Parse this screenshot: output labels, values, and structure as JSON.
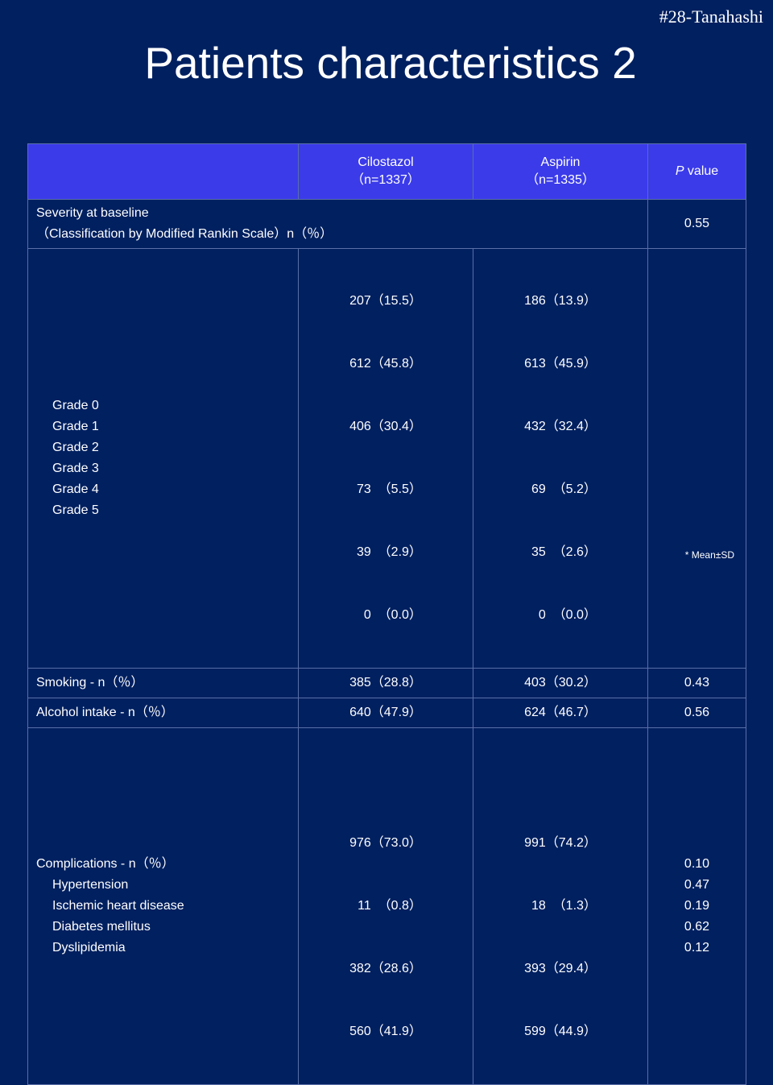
{
  "slide": {
    "tag": "#28-Tanahashi",
    "title": "Patients characteristics 2",
    "footnote": "*  Mean±SD"
  },
  "table": {
    "header": {
      "col1_name": "Cilostazol",
      "col1_n": "（n=1337）",
      "col2_name": "Aspirin",
      "col2_n": "（n=1335）",
      "p_italic": "P",
      "p_rest": " value"
    },
    "severity": {
      "label_line1": "Severity at baseline",
      "label_line2": "（Classification by Modified Rankin Scale）n（％）",
      "p": "0.55"
    },
    "grades": {
      "labels": [
        "Grade 0",
        "Grade 1",
        "Grade 2",
        "Grade 3",
        "Grade 4",
        "Grade 5"
      ],
      "cilostazol": [
        "207（15.5）",
        "612（45.8）",
        "406（30.4）",
        "73  （5.5）",
        "39  （2.9）",
        "0  （0.0）"
      ],
      "aspirin": [
        "186（13.9）",
        "613（45.9）",
        "432（32.4）",
        "69  （5.2）",
        "35  （2.6）",
        "0  （0.0）"
      ]
    },
    "smoking": {
      "label": "Smoking - n（％）",
      "cilostazol": "385（28.8）",
      "aspirin": "403（30.2）",
      "p": "0.43"
    },
    "alcohol": {
      "label": "Alcohol intake - n（％）",
      "cilostazol": "640（47.9）",
      "aspirin": "624（46.7）",
      "p": "0.56"
    },
    "complications": {
      "label": "Complications - n（％）",
      "items": [
        "Hypertension",
        "Ischemic heart disease",
        "Diabetes mellitus",
        "Dyslipidemia"
      ],
      "cilostazol": [
        "976（73.0）",
        "11  （0.8）",
        "382（28.6）",
        "560（41.9）"
      ],
      "aspirin": [
        "991（74.2）",
        "18  （1.3）",
        "393（29.4）",
        "599（44.9）"
      ],
      "p_values": [
        "0.10",
        "0.47",
        "0.19",
        "0.62",
        "0.12"
      ]
    }
  },
  "colors": {
    "background": "#002060",
    "header_fill": "#3b3bea",
    "text": "#ffffff"
  }
}
